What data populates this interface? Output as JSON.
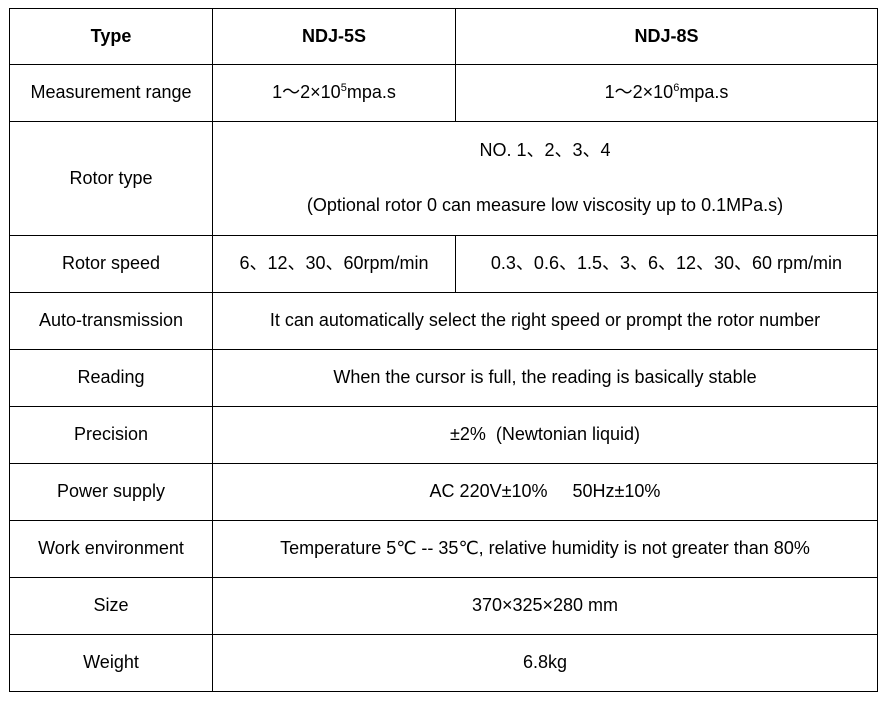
{
  "table": {
    "header": {
      "label": "Type",
      "model_a": "NDJ-5S",
      "model_b": "NDJ-8S"
    },
    "measurement_range": {
      "label": "Measurement range",
      "model_a": {
        "base": "1～2×10",
        "exp": "5",
        "unit": "mpa.s"
      },
      "model_b": {
        "base": "1～2×10",
        "exp": "6",
        "unit": "mpa.s"
      }
    },
    "rotor_type": {
      "label": "Rotor type",
      "line1": "NO. 1、2、3、4",
      "line2": "(Optional rotor 0 can measure low viscosity up to 0.1MPa.s)"
    },
    "rotor_speed": {
      "label": "Rotor speed",
      "model_a": "6、12、30、60rpm/min",
      "model_b": "0.3、0.6、1.5、3、6、12、30、60 rpm/min"
    },
    "rows": [
      {
        "label": "Auto-transmission",
        "value": "It can automatically select the right speed or prompt the rotor number"
      },
      {
        "label": "Reading",
        "value": "When the cursor is full, the reading is basically stable"
      },
      {
        "label": "Precision",
        "value": "±2%  (Newtonian liquid)"
      },
      {
        "label": "Power supply",
        "value": "AC 220V±10%     50Hz±10%"
      },
      {
        "label": "Work environment",
        "value": "Temperature 5℃ -- 35℃, relative humidity is not greater than 80%"
      },
      {
        "label": "Size",
        "value": "370×325×280 mm"
      },
      {
        "label": "Weight",
        "value": "6.8kg"
      }
    ]
  }
}
